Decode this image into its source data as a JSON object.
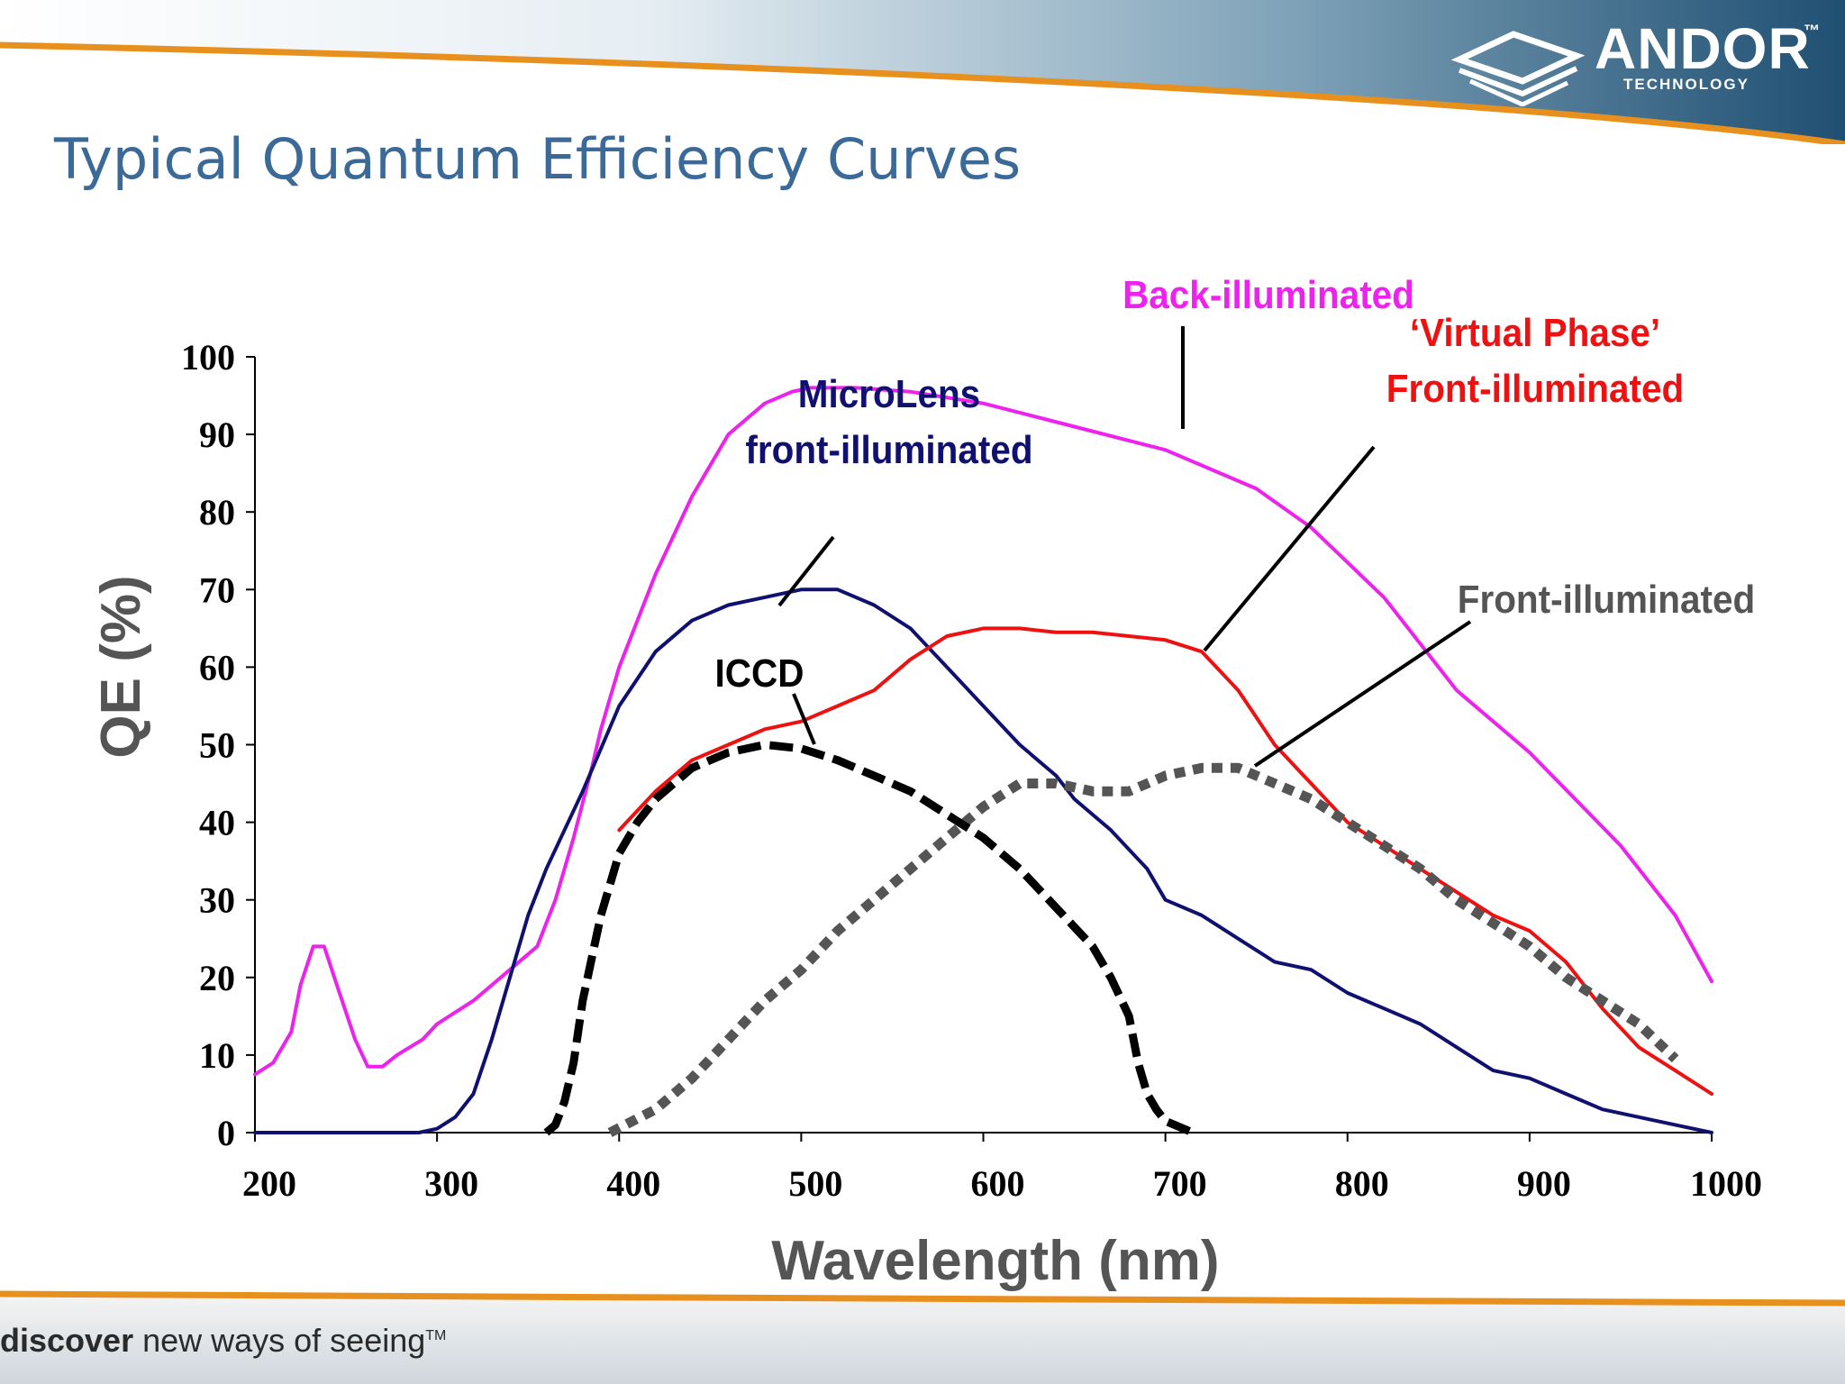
{
  "slide": {
    "title": "Typical Quantum Efficiency Curves",
    "logo_name": "ANDOR",
    "logo_tm": "™",
    "logo_subtitle": "TECHNOLOGY",
    "tagline_bold": "discover",
    "tagline_rest": " new ways of seeing",
    "tagline_tm": "TM"
  },
  "colors": {
    "title": "#3b6a99",
    "header_dark": "#1f4f72",
    "orange_stripe": "#e8901e",
    "back_illuminated": "#ee22ee",
    "microlens": "#101070",
    "virtual_phase": "#ee1111",
    "front_illuminated": "#555555",
    "iccd": "#000000"
  },
  "chart_data": {
    "type": "line",
    "xlabel": "Wavelength (nm)",
    "ylabel": "QE (%)",
    "xlim": [
      200,
      1000
    ],
    "ylim": [
      0,
      100
    ],
    "xticks": [
      "200",
      "300",
      "400",
      "500",
      "600",
      "700",
      "800",
      "900",
      "1000"
    ],
    "yticks": [
      "0",
      "10",
      "20",
      "30",
      "40",
      "50",
      "60",
      "70",
      "80",
      "90",
      "100"
    ],
    "grid": false,
    "series": [
      {
        "name": "Back-illuminated",
        "label_lines": [
          "Back-illuminated"
        ],
        "color": "#ee22ee",
        "style": "solid",
        "x": [
          200,
          210,
          220,
          225,
          232,
          238,
          245,
          255,
          262,
          270,
          278,
          285,
          292,
          300,
          320,
          340,
          355,
          365,
          375,
          385,
          390,
          395,
          400,
          420,
          440,
          460,
          480,
          495,
          505,
          515,
          530,
          560,
          600,
          650,
          700,
          750,
          780,
          820,
          860,
          900,
          950,
          980,
          1000
        ],
        "y": [
          7.5,
          9,
          13,
          19,
          24,
          24,
          19,
          12,
          8.5,
          8.5,
          10,
          11,
          12,
          14,
          17,
          21,
          24,
          30,
          38,
          47,
          52,
          56,
          60,
          72,
          82,
          90,
          94,
          95.5,
          96,
          96,
          96,
          95.5,
          94,
          91,
          88,
          83,
          78,
          69,
          57,
          49,
          37,
          28,
          19.5
        ]
      },
      {
        "name": "MicroLens front-illuminated",
        "label_lines": [
          "MicroLens",
          "front-illuminated"
        ],
        "color": "#101070",
        "style": "solid",
        "x": [
          200,
          250,
          280,
          290,
          300,
          310,
          320,
          330,
          340,
          350,
          360,
          380,
          400,
          420,
          440,
          460,
          480,
          500,
          520,
          540,
          560,
          580,
          600,
          620,
          640,
          650,
          660,
          670,
          690,
          700,
          720,
          740,
          760,
          780,
          800,
          820,
          840,
          860,
          880,
          900,
          920,
          940,
          960,
          980,
          1000
        ],
        "y": [
          0,
          0,
          0,
          0,
          0.5,
          2,
          5,
          12,
          20,
          28,
          34,
          44,
          55,
          62,
          66,
          68,
          69,
          70,
          70,
          68,
          65,
          60,
          55,
          50,
          46,
          43,
          41,
          39,
          34,
          30,
          28,
          25,
          22,
          21,
          18,
          16,
          14,
          11,
          8,
          7,
          5,
          3,
          2,
          1,
          0
        ]
      },
      {
        "name": "'Virtual Phase' Front-illuminated",
        "label_lines": [
          "‘Virtual Phase’",
          "Front-illuminated"
        ],
        "color": "#ee1111",
        "style": "solid",
        "x": [
          400,
          420,
          440,
          460,
          480,
          500,
          520,
          540,
          560,
          580,
          600,
          620,
          640,
          660,
          680,
          700,
          720,
          740,
          760,
          780,
          800,
          820,
          840,
          860,
          880,
          900,
          920,
          940,
          960,
          980,
          1000
        ],
        "y": [
          39,
          44,
          48,
          50,
          52,
          53,
          55,
          57,
          61,
          64,
          65,
          65,
          64.5,
          64.5,
          64,
          63.5,
          62,
          57,
          50,
          45,
          40,
          37,
          34,
          31,
          28,
          26,
          22,
          16,
          11,
          8,
          5
        ]
      },
      {
        "name": "Front-illuminated",
        "label_lines": [
          "Front-illuminated"
        ],
        "color": "#555555",
        "style": "dotted",
        "x": [
          395,
          420,
          440,
          460,
          480,
          500,
          520,
          540,
          560,
          580,
          600,
          620,
          640,
          660,
          680,
          700,
          720,
          740,
          760,
          780,
          800,
          820,
          840,
          860,
          880,
          900,
          920,
          940,
          960,
          980
        ],
        "y": [
          0,
          3,
          7,
          12,
          17,
          21,
          26,
          30,
          34,
          38,
          42,
          45,
          45,
          44,
          44,
          46,
          47,
          47,
          45,
          43,
          40,
          37,
          34,
          30,
          27,
          24,
          20,
          17,
          14,
          9.5
        ]
      },
      {
        "name": "ICCD",
        "label_lines": [
          "ICCD"
        ],
        "color": "#000000",
        "style": "dashed",
        "x": [
          360,
          365,
          370,
          375,
          380,
          390,
          400,
          410,
          420,
          440,
          460,
          480,
          500,
          520,
          540,
          560,
          580,
          600,
          620,
          640,
          660,
          670,
          680,
          685,
          690,
          695,
          700,
          705,
          710,
          715
        ],
        "y": [
          0,
          1,
          4,
          9,
          17,
          28,
          36,
          40,
          43,
          47,
          49,
          50,
          49.5,
          48,
          46,
          44,
          41,
          38,
          34,
          29,
          24,
          20,
          15,
          9,
          5,
          3,
          1.5,
          1,
          0.5,
          0
        ]
      }
    ]
  }
}
